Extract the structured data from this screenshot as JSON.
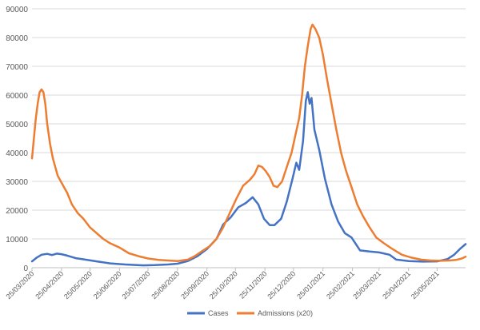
{
  "chart_data": {
    "type": "line",
    "title": "",
    "xlabel": "",
    "ylabel": "",
    "x_tick_labels": [
      "25/03/2020",
      "25/04/2020",
      "25/05/2020",
      "25/06/2020",
      "25/07/2020",
      "25/08/2020",
      "25/09/2020",
      "25/10/2020",
      "25/11/2020",
      "25/12/2020",
      "25/01/2021",
      "25/02/2021",
      "25/03/2021",
      "25/04/2021",
      "25/05/2021"
    ],
    "y_tick_labels": [
      "0",
      "10000",
      "20000",
      "30000",
      "40000",
      "50000",
      "60000",
      "70000",
      "80000",
      "90000"
    ],
    "ylim": [
      0,
      90000
    ],
    "x_range": [
      "2020-03-25",
      "2021-06-24"
    ],
    "grid": true,
    "legend_position": "bottom",
    "series": [
      {
        "name": "Cases",
        "color": "#4472C4",
        "points": [
          [
            "2020-03-25",
            2200
          ],
          [
            "2020-03-30",
            3500
          ],
          [
            "2020-04-04",
            4500
          ],
          [
            "2020-04-10",
            4800
          ],
          [
            "2020-04-15",
            4400
          ],
          [
            "2020-04-20",
            4900
          ],
          [
            "2020-04-25",
            4700
          ],
          [
            "2020-05-01",
            4200
          ],
          [
            "2020-05-10",
            3300
          ],
          [
            "2020-05-20",
            2800
          ],
          [
            "2020-06-01",
            2200
          ],
          [
            "2020-06-15",
            1500
          ],
          [
            "2020-07-01",
            1100
          ],
          [
            "2020-07-20",
            800
          ],
          [
            "2020-08-01",
            900
          ],
          [
            "2020-08-15",
            1100
          ],
          [
            "2020-08-25",
            1400
          ],
          [
            "2020-09-05",
            2300
          ],
          [
            "2020-09-15",
            4000
          ],
          [
            "2020-09-25",
            6500
          ],
          [
            "2020-10-05",
            10000
          ],
          [
            "2020-10-12",
            15000
          ],
          [
            "2020-10-20",
            17500
          ],
          [
            "2020-10-28",
            21000
          ],
          [
            "2020-11-05",
            22500
          ],
          [
            "2020-11-12",
            24500
          ],
          [
            "2020-11-18",
            22000
          ],
          [
            "2020-11-24",
            17000
          ],
          [
            "2020-11-30",
            14800
          ],
          [
            "2020-12-05",
            14800
          ],
          [
            "2020-12-12",
            17000
          ],
          [
            "2020-12-18",
            23000
          ],
          [
            "2020-12-24",
            31000
          ],
          [
            "2020-12-28",
            36500
          ],
          [
            "2020-12-31",
            34000
          ],
          [
            "2021-01-04",
            44000
          ],
          [
            "2021-01-07",
            58000
          ],
          [
            "2021-01-09",
            61000
          ],
          [
            "2021-01-11",
            57000
          ],
          [
            "2021-01-13",
            59000
          ],
          [
            "2021-01-16",
            48000
          ],
          [
            "2021-01-21",
            41000
          ],
          [
            "2021-01-27",
            31000
          ],
          [
            "2021-02-03",
            22000
          ],
          [
            "2021-02-10",
            16000
          ],
          [
            "2021-02-17",
            12000
          ],
          [
            "2021-02-24",
            10500
          ],
          [
            "2021-03-01",
            8000
          ],
          [
            "2021-03-05",
            6000
          ],
          [
            "2021-03-15",
            5600
          ],
          [
            "2021-03-25",
            5300
          ],
          [
            "2021-04-05",
            4500
          ],
          [
            "2021-04-12",
            2800
          ],
          [
            "2021-04-25",
            2300
          ],
          [
            "2021-05-10",
            2100
          ],
          [
            "2021-05-25",
            2200
          ],
          [
            "2021-06-05",
            3000
          ],
          [
            "2021-06-12",
            4500
          ],
          [
            "2021-06-18",
            6500
          ],
          [
            "2021-06-24",
            8200
          ]
        ]
      },
      {
        "name": "Admissions (x20)",
        "color": "#ED7D31",
        "points": [
          [
            "2020-03-25",
            38000
          ],
          [
            "2020-03-27",
            45000
          ],
          [
            "2020-03-29",
            52000
          ],
          [
            "2020-03-31",
            57000
          ],
          [
            "2020-04-02",
            61000
          ],
          [
            "2020-04-04",
            62000
          ],
          [
            "2020-04-06",
            61000
          ],
          [
            "2020-04-08",
            57000
          ],
          [
            "2020-04-10",
            50000
          ],
          [
            "2020-04-13",
            43000
          ],
          [
            "2020-04-16",
            38000
          ],
          [
            "2020-04-21",
            32000
          ],
          [
            "2020-04-26",
            29000
          ],
          [
            "2020-05-01",
            26000
          ],
          [
            "2020-05-06",
            22000
          ],
          [
            "2020-05-12",
            19000
          ],
          [
            "2020-05-18",
            17000
          ],
          [
            "2020-05-25",
            14000
          ],
          [
            "2020-06-01",
            12000
          ],
          [
            "2020-06-08",
            10000
          ],
          [
            "2020-06-15",
            8500
          ],
          [
            "2020-06-25",
            7000
          ],
          [
            "2020-07-05",
            5000
          ],
          [
            "2020-07-15",
            4000
          ],
          [
            "2020-07-25",
            3200
          ],
          [
            "2020-08-05",
            2700
          ],
          [
            "2020-08-15",
            2500
          ],
          [
            "2020-08-25",
            2300
          ],
          [
            "2020-09-05",
            2800
          ],
          [
            "2020-09-12",
            4000
          ],
          [
            "2020-09-20",
            5800
          ],
          [
            "2020-09-28",
            7500
          ],
          [
            "2020-10-05",
            10000
          ],
          [
            "2020-10-12",
            14000
          ],
          [
            "2020-10-19",
            19000
          ],
          [
            "2020-10-26",
            24000
          ],
          [
            "2020-11-02",
            28500
          ],
          [
            "2020-11-09",
            30500
          ],
          [
            "2020-11-14",
            32500
          ],
          [
            "2020-11-18",
            35500
          ],
          [
            "2020-11-22",
            35000
          ],
          [
            "2020-11-26",
            33500
          ],
          [
            "2020-11-30",
            31500
          ],
          [
            "2020-12-04",
            28500
          ],
          [
            "2020-12-08",
            28000
          ],
          [
            "2020-12-13",
            30000
          ],
          [
            "2020-12-18",
            35000
          ],
          [
            "2020-12-23",
            40000
          ],
          [
            "2020-12-27",
            46000
          ],
          [
            "2020-12-31",
            52000
          ],
          [
            "2021-01-03",
            60000
          ],
          [
            "2021-01-06",
            70000
          ],
          [
            "2021-01-09",
            77000
          ],
          [
            "2021-01-12",
            83000
          ],
          [
            "2021-01-14",
            84500
          ],
          [
            "2021-01-17",
            83000
          ],
          [
            "2021-01-21",
            80000
          ],
          [
            "2021-01-25",
            74000
          ],
          [
            "2021-01-29",
            66000
          ],
          [
            "2021-02-03",
            57000
          ],
          [
            "2021-02-08",
            48000
          ],
          [
            "2021-02-13",
            40000
          ],
          [
            "2021-02-18",
            34000
          ],
          [
            "2021-02-24",
            28000
          ],
          [
            "2021-03-02",
            22000
          ],
          [
            "2021-03-08",
            18000
          ],
          [
            "2021-03-15",
            14000
          ],
          [
            "2021-03-22",
            10500
          ],
          [
            "2021-03-30",
            8500
          ],
          [
            "2021-04-08",
            6500
          ],
          [
            "2021-04-18",
            4500
          ],
          [
            "2021-04-28",
            3500
          ],
          [
            "2021-05-08",
            2800
          ],
          [
            "2021-05-18",
            2500
          ],
          [
            "2021-05-28",
            2400
          ],
          [
            "2021-06-07",
            2500
          ],
          [
            "2021-06-14",
            2700
          ],
          [
            "2021-06-20",
            3200
          ],
          [
            "2021-06-24",
            3800
          ]
        ]
      }
    ]
  }
}
